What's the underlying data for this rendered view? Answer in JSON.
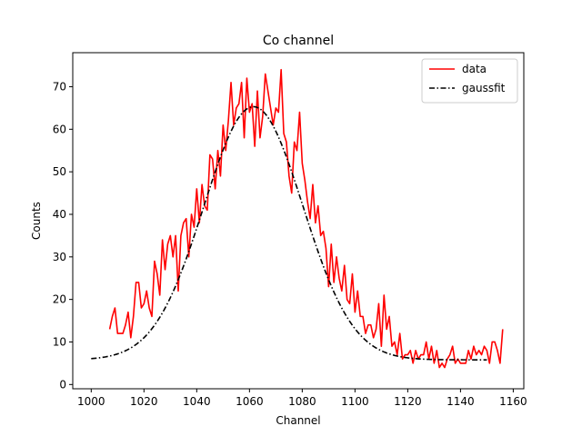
{
  "chart_data": {
    "type": "line",
    "title": "Co channel",
    "xlabel": "Channel",
    "ylabel": "Counts",
    "xlim": [
      993,
      1164
    ],
    "ylim": [
      -1,
      78
    ],
    "xticks": [
      1000,
      1020,
      1040,
      1060,
      1080,
      1100,
      1120,
      1140,
      1160
    ],
    "yticks": [
      0,
      10,
      20,
      30,
      40,
      50,
      60,
      70
    ],
    "grid": false,
    "legend_position": "top-right",
    "series": [
      {
        "name": "data",
        "color": "#ff0000",
        "style": "solid",
        "x": [
          1007,
          1008,
          1009,
          1010,
          1011,
          1012,
          1013,
          1014,
          1015,
          1016,
          1017,
          1018,
          1019,
          1020,
          1021,
          1022,
          1023,
          1024,
          1025,
          1026,
          1027,
          1028,
          1029,
          1030,
          1031,
          1032,
          1033,
          1034,
          1035,
          1036,
          1037,
          1038,
          1039,
          1040,
          1041,
          1042,
          1043,
          1044,
          1045,
          1046,
          1047,
          1048,
          1049,
          1050,
          1051,
          1052,
          1053,
          1054,
          1055,
          1056,
          1057,
          1058,
          1059,
          1060,
          1061,
          1062,
          1063,
          1064,
          1065,
          1066,
          1067,
          1068,
          1069,
          1070,
          1071,
          1072,
          1073,
          1074,
          1075,
          1076,
          1077,
          1078,
          1079,
          1080,
          1081,
          1082,
          1083,
          1084,
          1085,
          1086,
          1087,
          1088,
          1089,
          1090,
          1091,
          1092,
          1093,
          1094,
          1095,
          1096,
          1097,
          1098,
          1099,
          1100,
          1101,
          1102,
          1103,
          1104,
          1105,
          1106,
          1107,
          1108,
          1109,
          1110,
          1111,
          1112,
          1113,
          1114,
          1115,
          1116,
          1117,
          1118,
          1119,
          1120,
          1121,
          1122,
          1123,
          1124,
          1125,
          1126,
          1127,
          1128,
          1129,
          1130,
          1131,
          1132,
          1133,
          1134,
          1135,
          1136,
          1137,
          1138,
          1139,
          1140,
          1141,
          1142,
          1143,
          1144,
          1145,
          1146,
          1147,
          1148,
          1149,
          1150,
          1151,
          1152,
          1153,
          1154,
          1155,
          1156
        ],
        "y": [
          13,
          16,
          18,
          12,
          12,
          12,
          14,
          17,
          11,
          16,
          24,
          24,
          18,
          19,
          22,
          18,
          16,
          29,
          26,
          21,
          34,
          27,
          33,
          35,
          30,
          35,
          22,
          35,
          38,
          39,
          30,
          40,
          37,
          46,
          38,
          47,
          42,
          41,
          54,
          53,
          46,
          55,
          49,
          61,
          55,
          62,
          71,
          61,
          65,
          66,
          71,
          58,
          72,
          64,
          66,
          56,
          69,
          58,
          63,
          73,
          69,
          65,
          61,
          65,
          64,
          74,
          59,
          57,
          49,
          45,
          57,
          55,
          64,
          52,
          48,
          43,
          39,
          47,
          38,
          42,
          35,
          36,
          32,
          23,
          33,
          24,
          30,
          25,
          22,
          28,
          20,
          19,
          26,
          17,
          22,
          16,
          16,
          12,
          14,
          14,
          11,
          13,
          19,
          9,
          21,
          13,
          16,
          9,
          10,
          7,
          12,
          6,
          7,
          7,
          8,
          5,
          8,
          6,
          7,
          7,
          10,
          6,
          9,
          5,
          8,
          4,
          5,
          4,
          6,
          7,
          9,
          5,
          6,
          5,
          5,
          5,
          8,
          6,
          9,
          7,
          8,
          7,
          9,
          8,
          5,
          10,
          10,
          8,
          5,
          13
        ]
      },
      {
        "name": "gaussfit",
        "color": "#000000",
        "style": "dashdot",
        "model": {
          "amplitude": 59.5,
          "center": 1061.5,
          "sigma": 18.8,
          "offset": 5.8
        },
        "x_range": [
          1000,
          1150
        ]
      }
    ]
  }
}
